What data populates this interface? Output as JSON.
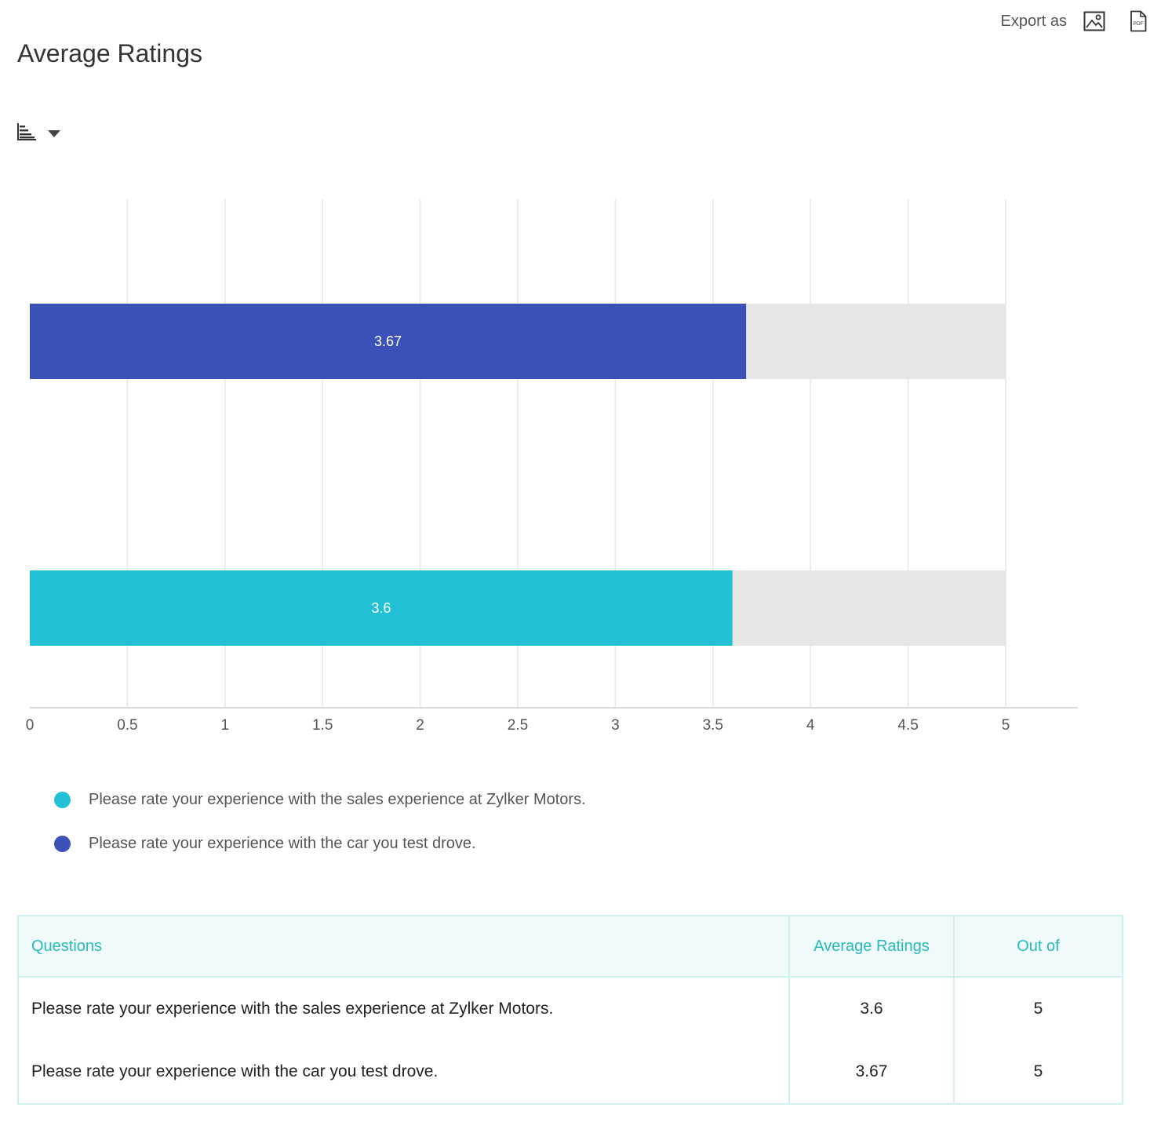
{
  "export": {
    "label": "Export as",
    "icons": [
      "image-export-icon",
      "pdf-export-icon"
    ],
    "pdf_text": "PDF"
  },
  "title": "Average Ratings",
  "chart_type_icon": "bar-chart-icon",
  "colors": {
    "sales": "#22c1d6",
    "car": "#3c51b8",
    "track": "#e6e6e6",
    "grid": "#e6e6e6",
    "table_accent": "#27b9bd"
  },
  "chart_data": {
    "type": "bar",
    "orientation": "horizontal",
    "categories": [
      "Please rate your experience with the car you test drove.",
      "Please rate your experience with the sales experience at Zylker Motors."
    ],
    "values": [
      3.67,
      3.6
    ],
    "data_labels": [
      "3.67",
      "3.6"
    ],
    "max_values": [
      5,
      5
    ],
    "series_colors": [
      "#3c51b8",
      "#22c1d6"
    ],
    "xlim": [
      0,
      5
    ],
    "x_ticks": [
      0,
      0.5,
      1,
      1.5,
      2,
      2.5,
      3,
      3.5,
      4,
      4.5,
      5
    ],
    "x_tick_labels": [
      "0",
      "0.5",
      "1",
      "1.5",
      "2",
      "2.5",
      "3",
      "3.5",
      "4",
      "4.5",
      "5"
    ],
    "grid": true,
    "legend_position": "bottom-left"
  },
  "legend": [
    {
      "label": "Please rate your experience with the sales experience at Zylker Motors.",
      "color": "#22c1d6"
    },
    {
      "label": "Please rate your experience with the car you test drove.",
      "color": "#3c51b8"
    }
  ],
  "table": {
    "headers": [
      "Questions",
      "Average Ratings",
      "Out of"
    ],
    "rows": [
      [
        "Please rate your experience with the sales experience at Zylker Motors.",
        "3.6",
        "5"
      ],
      [
        "Please rate your experience with the car you test drove.",
        "3.67",
        "5"
      ]
    ]
  }
}
